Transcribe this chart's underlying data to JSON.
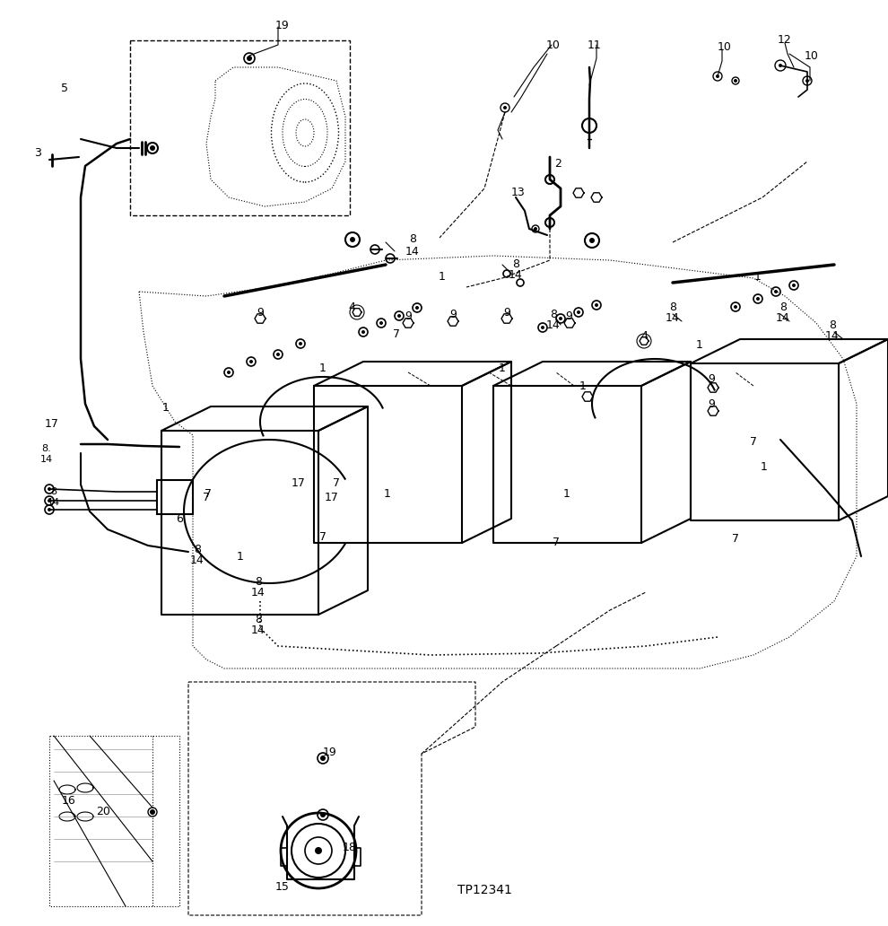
{
  "bg_color": "#ffffff",
  "line_color": "#000000",
  "figsize": [
    9.9,
    10.32
  ],
  "dpi": 100,
  "watermark": "TP12341"
}
